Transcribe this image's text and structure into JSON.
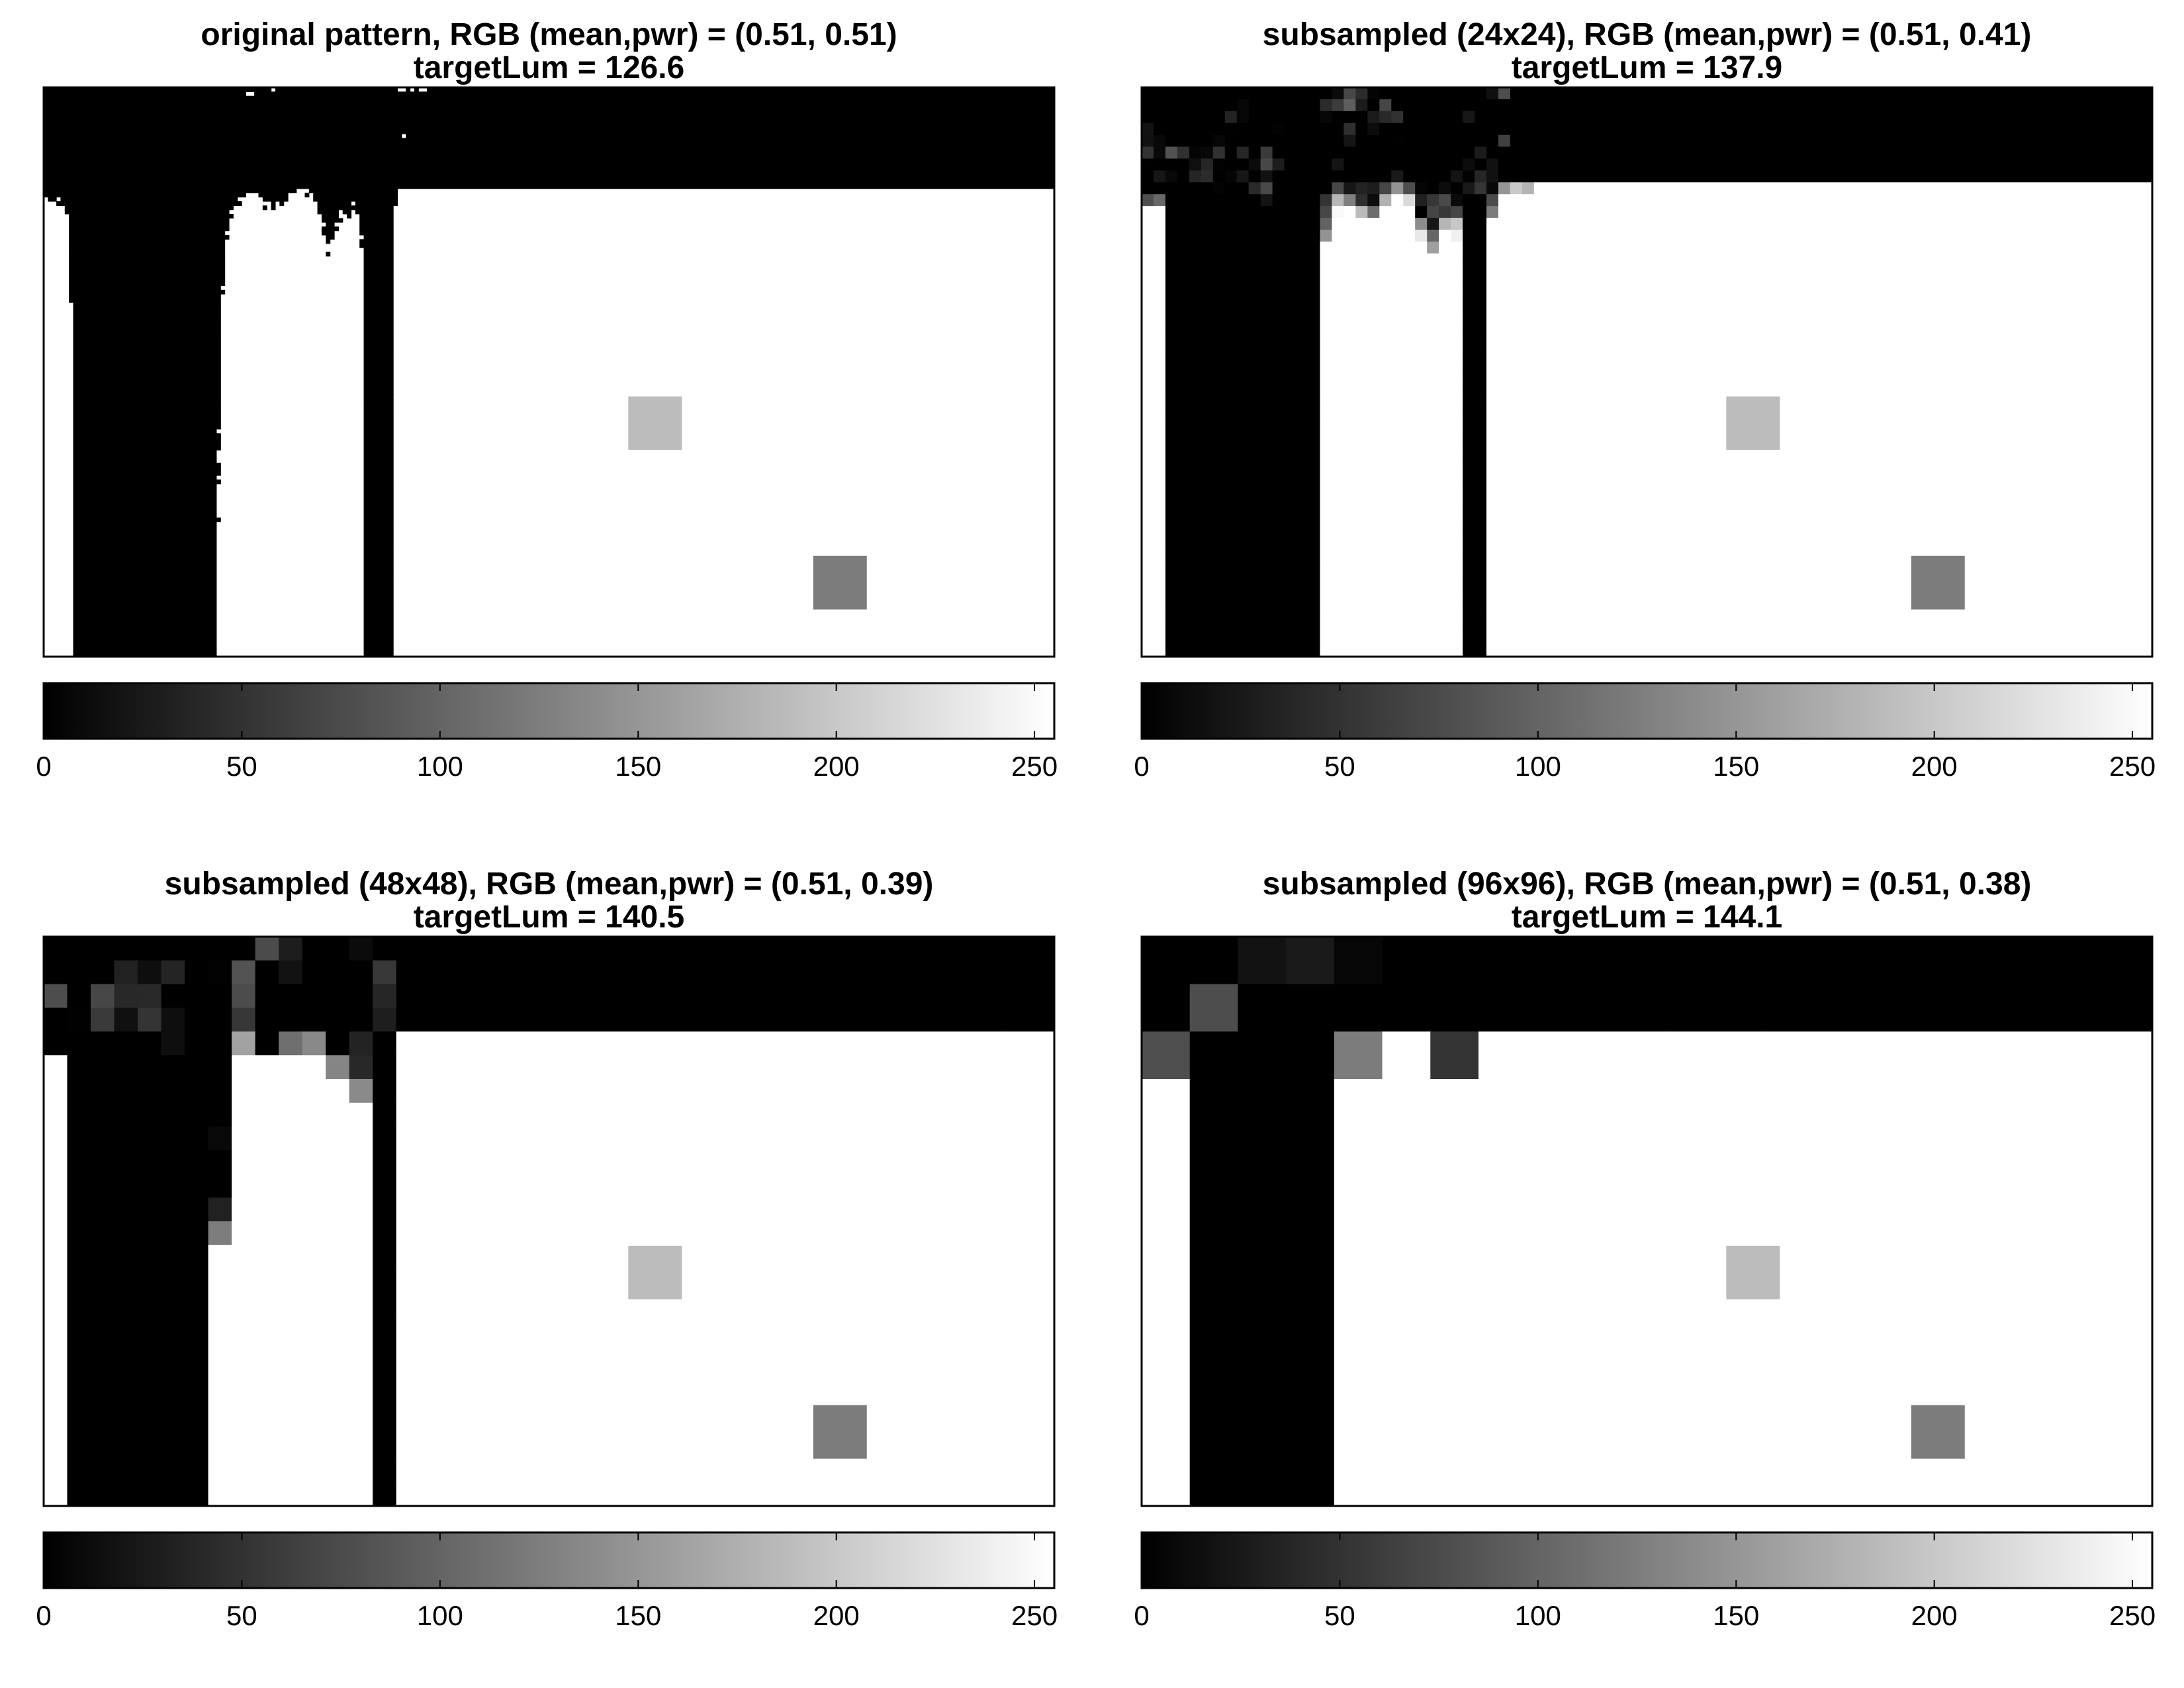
{
  "chart_data": [
    {
      "type": "heatmap",
      "title_line1": "original pattern, RGB (mean,pwr) = (0.51, 0.51)",
      "title_line2": "targetLum = 126.6",
      "colorbar": {
        "colormap": "gray",
        "range": [
          0,
          255
        ],
        "tick_values": [
          0,
          50,
          100,
          150,
          200,
          250
        ],
        "tick_labels": [
          "0",
          "50",
          "100",
          "150",
          "200",
          "250"
        ]
      },
      "patches": [
        {
          "value": 188
        },
        {
          "value": 124
        }
      ]
    },
    {
      "type": "heatmap",
      "title_line1": "subsampled (24x24), RGB (mean,pwr) = (0.51, 0.41)",
      "title_line2": "targetLum = 137.9",
      "colorbar": {
        "colormap": "gray",
        "range": [
          0,
          255
        ],
        "tick_values": [
          0,
          50,
          100,
          150,
          200,
          250
        ],
        "tick_labels": [
          "0",
          "50",
          "100",
          "150",
          "200",
          "250"
        ]
      },
      "patches": [
        {
          "value": 188
        },
        {
          "value": 124
        }
      ]
    },
    {
      "type": "heatmap",
      "title_line1": "subsampled (48x48), RGB (mean,pwr) = (0.51, 0.39)",
      "title_line2": "targetLum = 140.5",
      "colorbar": {
        "colormap": "gray",
        "range": [
          0,
          255
        ],
        "tick_values": [
          0,
          50,
          100,
          150,
          200,
          250
        ],
        "tick_labels": [
          "0",
          "50",
          "100",
          "150",
          "200",
          "250"
        ]
      },
      "patches": [
        {
          "value": 188
        },
        {
          "value": 124
        }
      ]
    },
    {
      "type": "heatmap",
      "title_line1": "subsampled (96x96), RGB (mean,pwr) = (0.51, 0.38)",
      "title_line2": "targetLum = 144.1",
      "colorbar": {
        "colormap": "gray",
        "range": [
          0,
          255
        ],
        "tick_values": [
          0,
          50,
          100,
          150,
          200,
          250
        ],
        "tick_labels": [
          "0",
          "50",
          "100",
          "150",
          "200",
          "250"
        ]
      },
      "patches": [
        {
          "value": 188
        },
        {
          "value": 124
        }
      ]
    }
  ]
}
